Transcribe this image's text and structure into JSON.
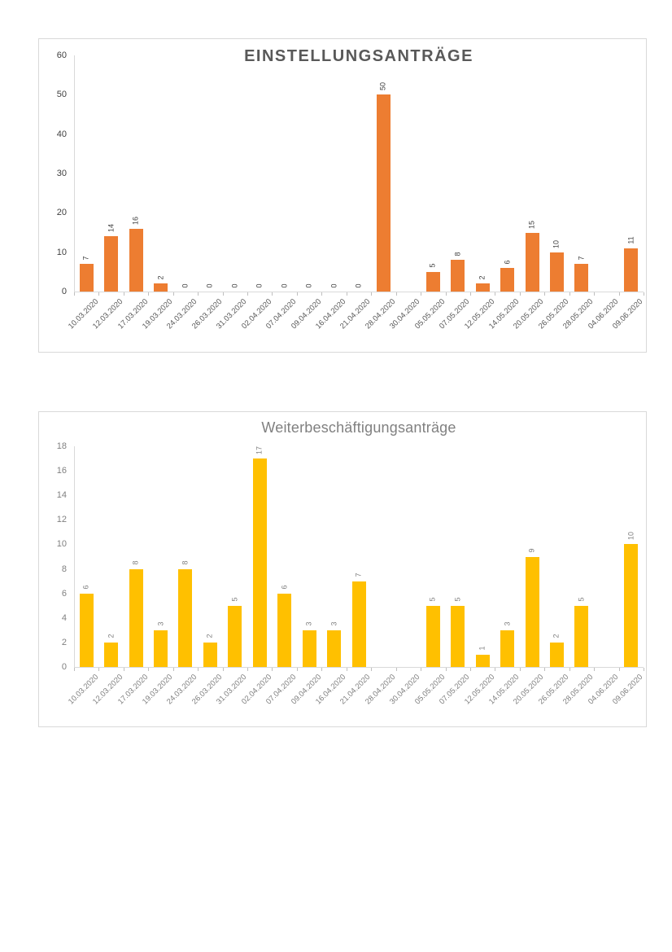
{
  "page": {
    "background": "#ffffff"
  },
  "chart_data": [
    {
      "type": "bar",
      "title": "EINSTELLUNGSANTRÄGE",
      "xlabel": "",
      "ylabel": "",
      "categories": [
        "10.03.2020",
        "12.03.2020",
        "17.03.2020",
        "19.03.2020",
        "24.03.2020",
        "26.03.2020",
        "31.03.2020",
        "02.04.2020",
        "07.04.2020",
        "09.04.2020",
        "16.04.2020",
        "21.04.2020",
        "28.04.2020",
        "30.04.2020",
        "05.05.2020",
        "07.05.2020",
        "12.05.2020",
        "14.05.2020",
        "20.05.2020",
        "26.05.2020",
        "28.05.2020",
        "04.06.2020",
        "09.06.2020"
      ],
      "values": [
        7,
        14,
        16,
        2,
        0,
        0,
        0,
        0,
        0,
        0,
        0,
        0,
        50,
        null,
        5,
        8,
        2,
        6,
        15,
        10,
        7,
        null,
        11
      ],
      "ylim": [
        0,
        60
      ],
      "ytick_step": 10,
      "yticks": [
        0,
        10,
        20,
        30,
        40,
        50,
        60
      ],
      "grid": false,
      "legend": "none",
      "data_labels": "rotated-vertical-above-bar",
      "colors": {
        "bar": "#ED7D31",
        "title": "#595959",
        "values": "#404040",
        "xticks": "#595959",
        "yticks": "#404040",
        "axis": "#d9d9d9",
        "ticks": "#bfbfbf",
        "border": "#d9d9d9"
      }
    },
    {
      "type": "bar",
      "title": "Weiterbeschäftigungsanträge",
      "xlabel": "",
      "ylabel": "",
      "categories": [
        "10.03.2020",
        "12.03.2020",
        "17.03.2020",
        "19.03.2020",
        "24.03.2020",
        "26.03.2020",
        "31.03.2020",
        "02.04.2020",
        "07.04.2020",
        "09.04.2020",
        "16.04.2020",
        "21.04.2020",
        "28.04.2020",
        "30.04.2020",
        "05.05.2020",
        "07.05.2020",
        "12.05.2020",
        "14.05.2020",
        "20.05.2020",
        "26.05.2020",
        "28.05.2020",
        "04.06.2020",
        "09.06.2020"
      ],
      "values": [
        6,
        2,
        8,
        3,
        8,
        2,
        5,
        17,
        6,
        3,
        3,
        7,
        null,
        null,
        5,
        5,
        1,
        3,
        9,
        2,
        5,
        null,
        10
      ],
      "ylim": [
        0,
        18
      ],
      "ytick_step": 2,
      "yticks": [
        0,
        2,
        4,
        6,
        8,
        10,
        12,
        14,
        16,
        18
      ],
      "grid": false,
      "legend": "none",
      "data_labels": "rotated-vertical-above-bar",
      "colors": {
        "bar": "#FFC000",
        "title": "#808080",
        "values": "#808080",
        "xticks": "#7f7f7f",
        "yticks": "#808080",
        "axis": "#d9d9d9",
        "ticks": "#bfbfbf",
        "border": "#d9d9d9"
      }
    }
  ]
}
